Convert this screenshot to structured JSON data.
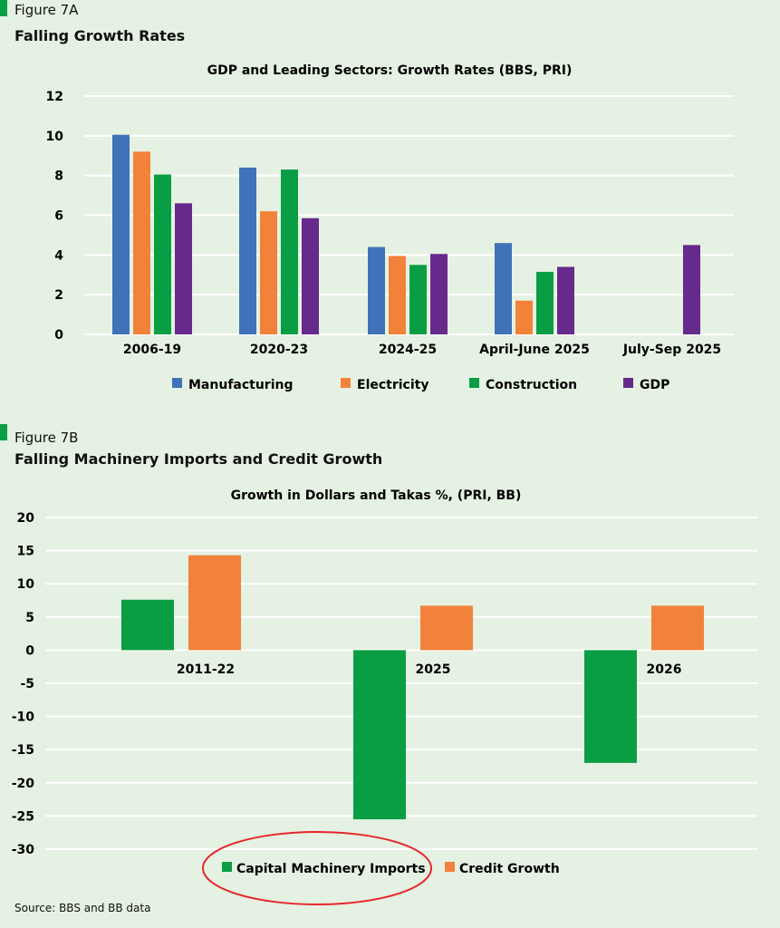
{
  "figures": [
    {
      "label": "Figure 7A",
      "title": "Falling Growth Rates"
    },
    {
      "label": "Figure 7B",
      "title": "Falling Machinery Imports and Credit Growth"
    }
  ],
  "source": "Source: BBS and BB data",
  "chart_data": [
    {
      "type": "bar",
      "title": "GDP and Leading Sectors:  Growth Rates (BBS, PRI)",
      "categories": [
        "2006-19",
        "2020-23",
        "2024-25",
        "April-June 2025",
        "July-Sep 2025"
      ],
      "ylim": [
        0,
        12
      ],
      "yticks": [
        0,
        2,
        4,
        6,
        8,
        10,
        12
      ],
      "grid": true,
      "legend": "bottom",
      "series": [
        {
          "name": "Manufacturing",
          "color": "#3f72b8",
          "values": [
            10.05,
            8.4,
            4.4,
            4.6,
            null
          ]
        },
        {
          "name": "Electricity",
          "color": "#f2823a",
          "values": [
            9.2,
            6.2,
            3.95,
            1.7,
            null
          ]
        },
        {
          "name": "Construction",
          "color": "#0a9e44",
          "values": [
            8.05,
            8.3,
            3.5,
            3.15,
            null
          ]
        },
        {
          "name": "GDP",
          "color": "#662a8d",
          "values": [
            6.6,
            5.85,
            4.05,
            3.4,
            4.5
          ]
        }
      ]
    },
    {
      "type": "bar",
      "title": "Growth  in Dollars  and Takas %, (PRI, BB)",
      "categories": [
        "2011-22",
        "2025",
        "2026"
      ],
      "ylim": [
        -30,
        20
      ],
      "yticks": [
        20,
        15,
        10,
        5,
        0,
        -5,
        -10,
        -15,
        -20,
        -25,
        -30
      ],
      "grid": true,
      "legend": "bottom",
      "series": [
        {
          "name": "Capital Machinery Imports",
          "color": "#0a9e44",
          "values": [
            7.6,
            -25.5,
            -17
          ]
        },
        {
          "name": "Credit Growth",
          "color": "#f2823a",
          "values": [
            14.3,
            6.7,
            6.7
          ]
        }
      ]
    }
  ]
}
